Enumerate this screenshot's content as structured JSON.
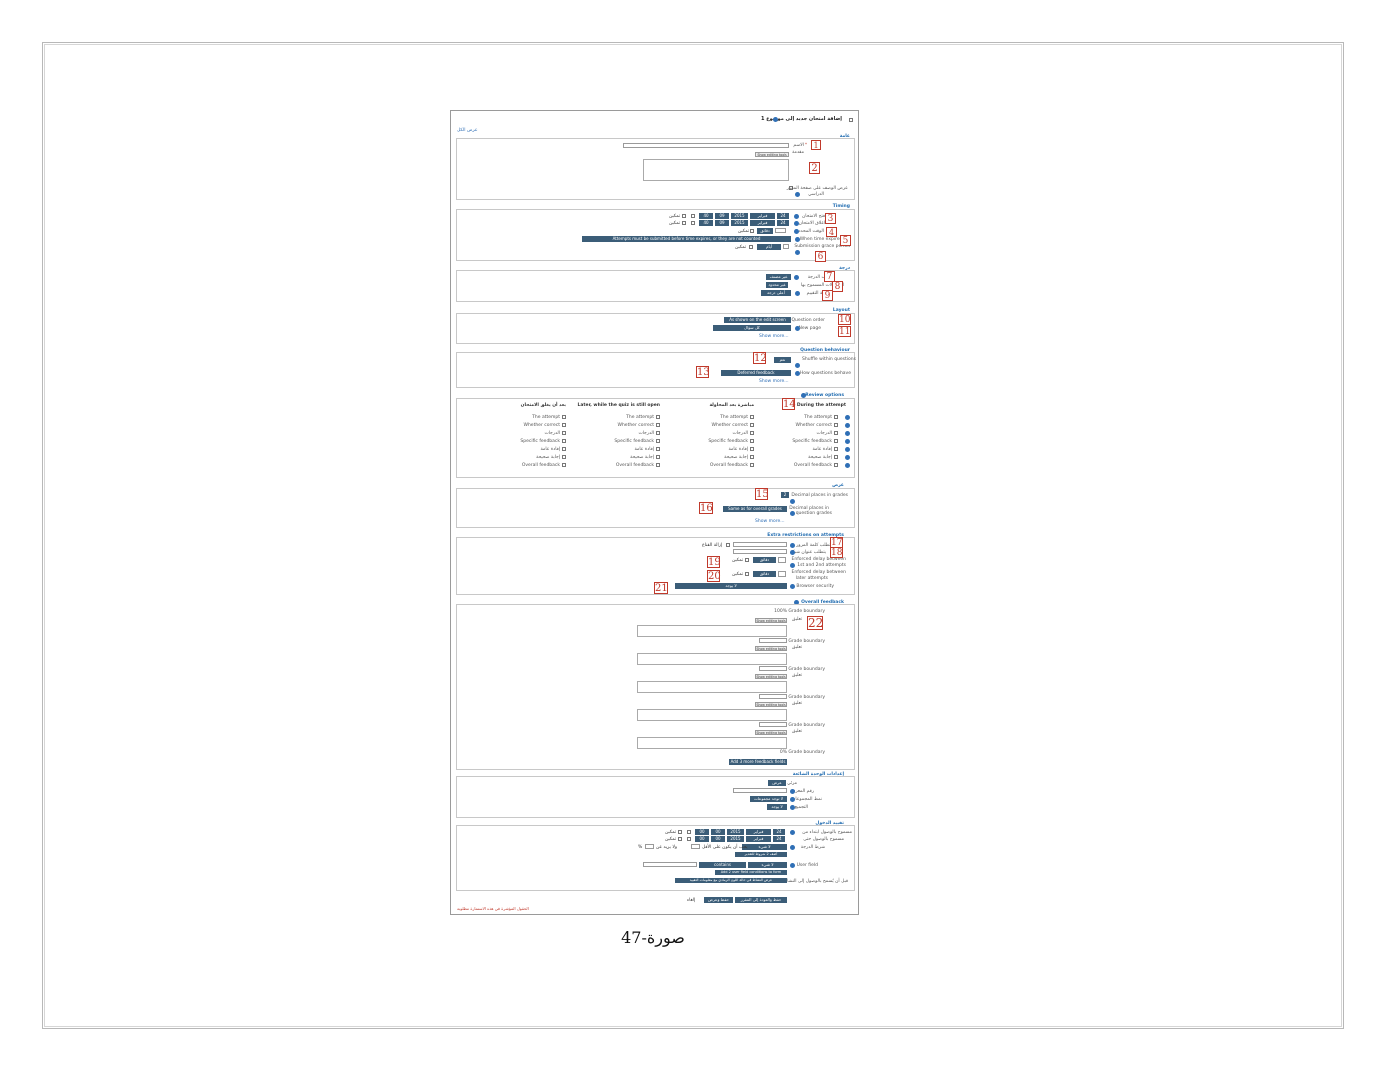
{
  "page": {
    "caption": "صورة-47",
    "title": "إضافة امتحان جديد إلى موضوع 1",
    "expand_all": "عرض الكل",
    "required_note": "الحقول المؤشرة في هذه الاستمارة مطلوبة"
  },
  "sections": {
    "general": "عامة",
    "timing": "Timing",
    "grade": "درجة",
    "layout": "Layout",
    "question_behaviour": "Question behaviour",
    "review_options": "Review options",
    "appearance": "عرض",
    "extra_restrictions": "Extra restrictions on attempts",
    "overall_feedback": "Overall feedback",
    "common_settings": "إعدادات الوحدة الشائعة",
    "restrict_access": "تقييد الدخول"
  },
  "general": {
    "name_label": "الاسم",
    "description_label": "مقدمة",
    "show_editing_tools": "Show editing tools",
    "display_description_line1": "عرض الوصف على صفحة المقرر",
    "display_description_line2": "الدراسي"
  },
  "timing": {
    "open_label": "فتح الامتحان",
    "close_label": "اغلاق الامتحان",
    "open_day": "24",
    "open_month": "فبراير",
    "open_year": "2015",
    "open_hour": "09",
    "open_minute": "40",
    "close_day": "24",
    "close_month": "فبراير",
    "close_year": "2015",
    "close_hour": "09",
    "close_minute": "40",
    "enable": "تمكين",
    "time_limit_label": "الوقت المحدد",
    "time_limit_unit": "دقائق",
    "time_limit_enable": "تمكين",
    "when_expires_label": "When time expires",
    "when_expires_value": "Attempts must be submitted before time expires, or they are not counted",
    "grace_label": "Submission grace period",
    "grace_unit": "أيام",
    "grace_enable": "تمكين"
  },
  "grade": {
    "category_label": "تصنيف الدرجة",
    "category_value": "غير مصنف",
    "attempts_label": "المحاولات المسموح بها",
    "attempts_value": "غير محدود",
    "method_label": "طريقة التقييم",
    "method_value": "أعلى درجة"
  },
  "layout": {
    "order_label": "Question order",
    "order_value": "As shown on the edit screen",
    "newpage_label": "New page",
    "newpage_value": "كل سؤال",
    "show_more": "Show more..."
  },
  "behaviour": {
    "shuffle_label": "Shuffle within questions",
    "shuffle_value": "نعم",
    "how_label": "How questions behave",
    "how_value": "Deferred feedback",
    "show_more": "Show more..."
  },
  "review": {
    "columns": [
      {
        "header": "During the attempt",
        "items": [
          "The attempt",
          "Whether correct",
          "الدرجات",
          "Specific feedback",
          "إفادة عامة",
          "إجابة صحيحة",
          "Overall feedback"
        ]
      },
      {
        "header": "مباشرة بعد المحاولة",
        "items": [
          "The attempt",
          "Whether correct",
          "الدرجات",
          "Specific feedback",
          "إفادة عامة",
          "إجابة صحيحة",
          "Overall feedback"
        ]
      },
      {
        "header": "Later, while the quiz is still open",
        "items": [
          "The attempt",
          "Whether correct",
          "الدرجات",
          "Specific feedback",
          "إفادة عامة",
          "إجابة صحيحة",
          "Overall feedback"
        ]
      },
      {
        "header": "بعد أن يغلق الامتحان",
        "items": [
          "The attempt",
          "Whether correct",
          "الدرجات",
          "Specific feedback",
          "إفادة عامة",
          "إجابة صحيحة",
          "Overall feedback"
        ]
      }
    ]
  },
  "appearance": {
    "decimal_label": "Decimal places in grades",
    "decimal_value": "2",
    "qdecimal_label1": "Decimal places in",
    "qdecimal_label2": "question grades",
    "qdecimal_value": "Same as for overall grades",
    "show_more": "Show more..."
  },
  "extra": {
    "password_label": "تتطلب كلمة المرور",
    "password_unmask": "إزالة القناع",
    "network_label": "يتطلب عنوان شبكة",
    "delay1_label1": "Enforced delay between",
    "delay1_label2": "1st and 2nd attempts",
    "delay1_unit": "دقائق",
    "delay1_enable": "تمكين",
    "delay2_label1": "Enforced delay between",
    "delay2_label2": "later attempts",
    "delay2_unit": "دقائق",
    "delay2_enable": "تمكين",
    "browser_label": "Browser security",
    "browser_value": "لا يوجد"
  },
  "feedback": {
    "top_boundary": "100%",
    "bottom_boundary": "0%",
    "boundary_label": "Grade boundary",
    "feedback_label": "تعليق",
    "show_editing_tools": "Show editing tools",
    "add_more": "Add 3 more feedback fields"
  },
  "common": {
    "visible_label": "مرئي",
    "visible_value": "عرض",
    "id_label": "رقم المعرف",
    "groupmode_label": "نمط المجموعات",
    "groupmode_value": "لا توجد مجموعات",
    "grouping_label": "التجميع",
    "grouping_value": "لا يوجد"
  },
  "restrict": {
    "from_label": "مسموح بالوصول ابتداء من",
    "until_label": "مسموح بالوصول حتى",
    "from_day": "24",
    "from_month": "فبراير",
    "from_year": "2015",
    "from_hour": "00",
    "from_minute": "00",
    "until_day": "24",
    "until_month": "فبراير",
    "until_year": "2015",
    "until_hour": "00",
    "until_minute": "00",
    "enable": "تمكين",
    "grade_condition_label": "شرط الدرجة",
    "grade_condition_value": "لا شيء",
    "must_reach": "يجب أن يكون على الأقل",
    "less_than": "ولا يزيد عن",
    "percent": "%",
    "add_grade_conditions": "أضف 2 شروط للتقدير",
    "user_field_label": "User field",
    "user_field_value": "لا شيء",
    "operator_value": "contains",
    "add_user_conditions": "Add 2 user field conditions to form",
    "before_label": "قبل أن يُسمح بالوصول إلى النشاط",
    "before_value": "عرض النشاط في حالة اللون الرمادي مع معلومات التقييد"
  },
  "buttons": {
    "save_return": "حفظ والعودة إلى المقرر",
    "save_display": "حفظ وعرض",
    "cancel": "إلغاء"
  },
  "markers": [
    "1",
    "2",
    "3",
    "4",
    "5",
    "6",
    "7",
    "8",
    "9",
    "10",
    "11",
    "12",
    "13",
    "14",
    "15",
    "16",
    "17",
    "18",
    "19",
    "20",
    "21",
    "22"
  ]
}
